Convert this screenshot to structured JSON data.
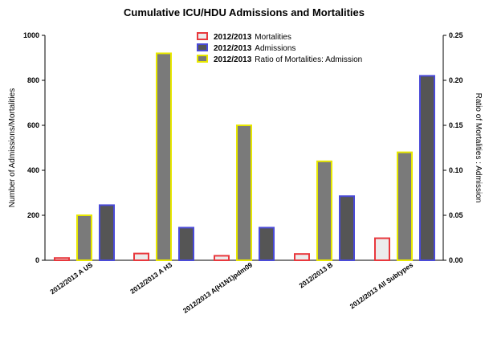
{
  "chart_data": {
    "type": "bar",
    "title": "Cumulative ICU/HDU Admissions and Mortalities",
    "xlabel": "",
    "ylabel": "Number of Admissions/Mortalities",
    "y2label": "Ratio of Mortalities : Admission",
    "ylim": [
      0,
      1000
    ],
    "y2lim": [
      0,
      0.25
    ],
    "yticks": [
      "0",
      "200",
      "400",
      "600",
      "800",
      "1000"
    ],
    "y2ticks": [
      "0.00",
      "0.05",
      "0.10",
      "0.15",
      "0.20",
      "0.25"
    ],
    "categories": [
      "2012/2013 A US",
      "2012/2013 A H3",
      "2012/2013 A(H1N1)pdm09",
      "2012/2013 B",
      "2012/2013 All Subtypes"
    ],
    "series": [
      {
        "name": "2012/2013 Mortalities",
        "legend_bold": "2012/2013",
        "legend_rest": "Mortalities",
        "axis": "left",
        "values": [
          10,
          30,
          20,
          28,
          98
        ],
        "fill": "#ececec",
        "stroke": "#e8383d"
      },
      {
        "name": "2012/2013 Admissions",
        "legend_bold": "2012/2013",
        "legend_rest": "Admissions",
        "axis": "left",
        "values": [
          245,
          145,
          145,
          285,
          820
        ],
        "fill": "#555555",
        "stroke": "#4a4ad8"
      },
      {
        "name": "2012/2013 Ratio of Mortalities: Admission",
        "legend_bold": "2012/2013",
        "legend_rest": "Ratio of Mortalities: Admission",
        "axis": "right",
        "values": [
          0.05,
          0.23,
          0.15,
          0.11,
          0.12
        ],
        "fill": "#7a7a7a",
        "stroke": "#e8e800"
      }
    ],
    "legend_position": "top-center",
    "grid": false
  }
}
